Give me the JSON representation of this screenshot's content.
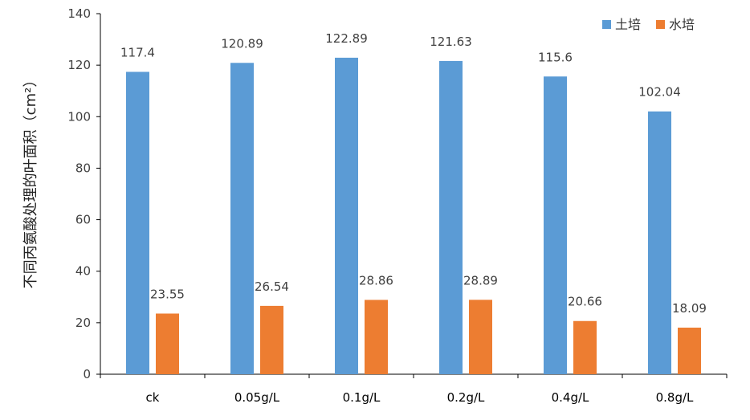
{
  "chart_data": {
    "type": "bar",
    "title": "",
    "xlabel": "",
    "ylabel": "不同丙氨酸处理的叶面积（cm²）",
    "ylim": [
      0,
      140
    ],
    "yticks": [
      0,
      20,
      40,
      60,
      80,
      100,
      120,
      140
    ],
    "grid": false,
    "legend_position": "top-right",
    "categories": [
      "ck",
      "0.05g/L",
      "0.1g/L",
      "0.2g/L",
      "0.4g/L",
      "0.8g/L"
    ],
    "series": [
      {
        "name": "土培",
        "color": "#5B9BD5",
        "values": [
          117.4,
          120.89,
          122.89,
          121.63,
          115.6,
          102.04
        ]
      },
      {
        "name": "水培",
        "color": "#ED7D31",
        "values": [
          23.55,
          26.54,
          28.86,
          28.89,
          20.66,
          18.09
        ]
      }
    ]
  }
}
